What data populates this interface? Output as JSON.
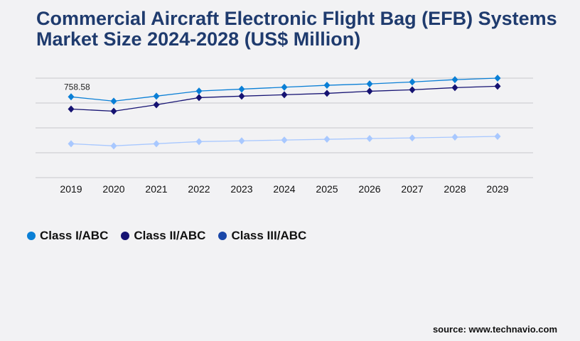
{
  "title": "Commercial Aircraft Electronic Flight Bag (EFB) Systems Market Size 2024-2028 (US$ Million)",
  "source": "source: www.technavio.com",
  "chart_data": {
    "type": "line",
    "title": "Commercial Aircraft Electronic Flight Bag (EFB) Systems Market Size 2024-2028 (US$ Million)",
    "categories": [
      "2019",
      "2020",
      "2021",
      "2022",
      "2023",
      "2024",
      "2025",
      "2026",
      "2027",
      "2028",
      "2029"
    ],
    "ylim": [
      0,
      934
    ],
    "grid": true,
    "legend_position": "bottom-left",
    "annotations": [
      {
        "series": 0,
        "index": 0,
        "text": "758.58"
      }
    ],
    "series": [
      {
        "name": "Class I/ABC",
        "color": "#0a7fd6",
        "legend_color": "#0a7fd6",
        "values": [
          758.58,
          718,
          765,
          813,
          831,
          849,
          867,
          880,
          898,
          920,
          934
        ]
      },
      {
        "name": "Class II/ABC",
        "color": "#151272",
        "legend_color": "#151272",
        "values": [
          644,
          624,
          684,
          751,
          765,
          778,
          791,
          811,
          825,
          845,
          858
        ]
      },
      {
        "name": "Class III/ABC",
        "color": "#a8c8ff",
        "legend_color": "#1a47a8",
        "values": [
          318,
          298,
          318,
          338,
          345,
          353,
          360,
          367,
          373,
          380,
          387
        ]
      }
    ]
  }
}
